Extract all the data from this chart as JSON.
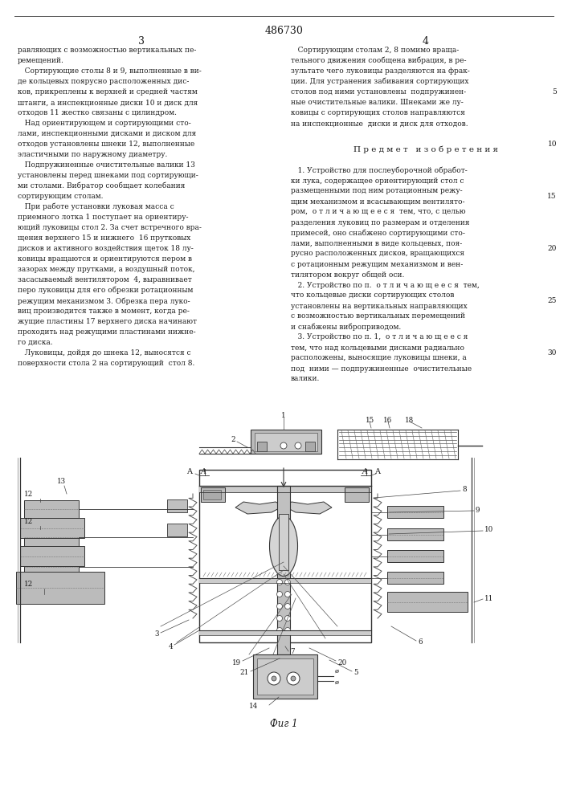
{
  "patent_number": "486730",
  "page_left": "3",
  "page_right": "4",
  "bg_color": "#ffffff",
  "text_color": "#1a1a1a",
  "fig_caption": "Фиг 1",
  "left_col": [
    "равляющих с возможностью вертикальных пе-",
    "ремещений.",
    "   Сортирующие столы 8 и 9, выполненные в ви-",
    "де кольцевых поярусно расположенных дис-",
    "ков, прикреплены к верхней и средней частям",
    "штанги, а инспекционные диски 10 и диск для",
    "отходов 11 жестко связаны с цилиндром.",
    "   Над ориентирующем и сортирующими сто-",
    "лами, инспекционными дисками и диском для",
    "отходов установлены шнеки 12, выполненные",
    "эластичными по наружному диаметру.",
    "   Подпружиненные очистительные валики 13",
    "установлены перед шнеками под сортирующи-",
    "ми столами. Вибратор сообщает колебания",
    "сортирующим столам.",
    "   При работе установки луковая масса с",
    "приемного лотка 1 поступает на ориентиру-",
    "ющий луковицы стол 2. За счет встречного вра-",
    "щения верхнего 15 и нижнего  16 прутковых",
    "дисков и активного воздействия щеток 18 лу-",
    "ковицы вращаются и ориентируются пером в",
    "зазорах между прутками, а воздушный поток,",
    "засасываемый вентилятором  4, выравнивает",
    "перо луковицы для его обрезки ротационным",
    "режущим механизмом 3. Обрезка пера луко-",
    "виц производится также в момент, когда ре-",
    "жущие пластины 17 верхнего диска начинают",
    "проходить над режущими пластинами нижне-",
    "го диска.",
    "   Луковицы, дойдя до шнека 12, выносятся с",
    "поверхности стола 2 на сортирующий  стол 8."
  ],
  "right_top": [
    "   Сортирующим столам 2, 8 помимо враща-",
    "тельного движения сообщена вибрация, в ре-",
    "зультате чего луковицы разделяются на фрак-",
    "ции. Для устранения забивания сортирующих",
    "столов под ними установлены  подпружинен-",
    "ные очистительные валики. Шнеками же лу-",
    "ковицы с сортирующих столов направляются",
    "на инспекционные  диски и диск для отходов."
  ],
  "predmet": "П р е д м е т   и з о б р е т е н и я",
  "claims": [
    "   1. Устройство для послеуборочной обработ-",
    "ки лука, содержащее ориентирующий стол с",
    "размещенными под ним ротационным режу-",
    "щим механизмом и всасывающим вентилято-",
    "ром,  о т л и ч а ю щ е е с я  тем, что, с целью",
    "разделения луковиц по размерам и отделения",
    "примесей, оно снабжено сортирующими сто-",
    "лами, выполненными в виде кольцевых, поя-",
    "русно расположенных дисков, вращающихся",
    "с ротационным режущим механизмом и вен-",
    "тилятором вокруг общей оси.",
    "   2. Устройство по п.  о т л и ч а ю щ е е с я  тем,",
    "что кольцевые диски сортирующих столов",
    "установлены на вертикальных направляющих",
    "с возможностью вертикальных перемещений",
    "и снабжены виброприводом.",
    "   3. Устройство по п. 1,  о т л и ч а ю щ е е с я",
    "тем, что над кольцевыми дисками радиально",
    "расположены, выносящие луковицы шнеки, а",
    "под  ними — подпружиненные  очистительные",
    "валики."
  ],
  "line_nums": [
    "5",
    "10",
    "15",
    "20",
    "25",
    "30"
  ]
}
